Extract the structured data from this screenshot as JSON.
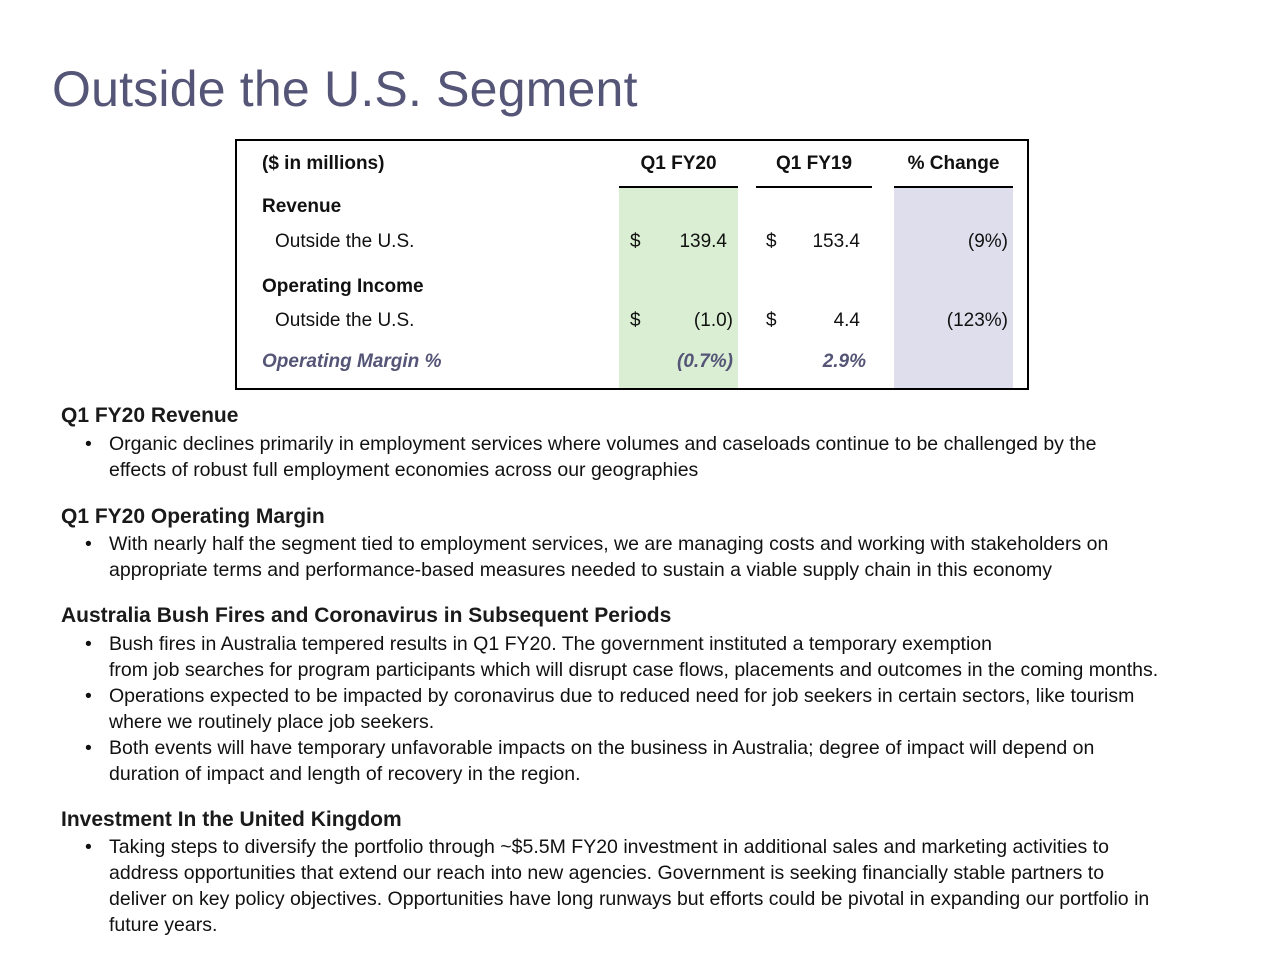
{
  "title": "Outside the U.S. Segment",
  "table": {
    "units": "($ in millions)",
    "col_q1fy20": "Q1 FY20",
    "col_q1fy19": "Q1 FY19",
    "col_change": "% Change",
    "revenue_heading": "Revenue",
    "revenue_row": {
      "label": "Outside the U.S.",
      "q1fy20_currency": "$",
      "q1fy20": "139.4",
      "q1fy19_currency": "$",
      "q1fy19": "153.4",
      "change": "(9%)"
    },
    "opinc_heading": "Operating Income",
    "opinc_row": {
      "label": "Outside the U.S.",
      "q1fy20_currency": "$",
      "q1fy20": "(1.0)",
      "q1fy19_currency": "$",
      "q1fy19": "4.4",
      "change": "(123%)"
    },
    "margin_row": {
      "label": "Operating Margin %",
      "q1fy20": "(0.7%)",
      "q1fy19": "2.9%"
    }
  },
  "sections": [
    {
      "heading": "Q1 FY20 Revenue",
      "bullets": [
        {
          "lines": [
            "Organic declines primarily in employment services where volumes and caseloads continue to be challenged by the",
            "effects of robust full employment economies across our geographies"
          ]
        }
      ]
    },
    {
      "heading": "Q1 FY20 Operating Margin",
      "bullets": [
        {
          "lines": [
            "With nearly half the segment tied to employment services, we are managing costs and working with stakeholders on",
            "appropriate terms and performance-based measures needed to sustain a viable supply chain in this economy"
          ]
        }
      ]
    },
    {
      "heading": "Australia Bush Fires and Coronavirus in Subsequent Periods",
      "bullets": [
        {
          "lines": [
            "Bush fires in Australia tempered results in Q1 FY20. The government instituted a temporary exemption",
            "from job searches for program participants which will disrupt case flows, placements and outcomes in the coming months."
          ]
        },
        {
          "lines": [
            "Operations expected to be impacted by coronavirus due to reduced need for job seekers in certain sectors, like tourism",
            "where we routinely place job seekers."
          ]
        },
        {
          "lines": [
            "Both events will have temporary unfavorable impacts on the business in Australia; degree of impact will depend on",
            "duration of impact and length of recovery in the region."
          ]
        }
      ]
    },
    {
      "heading": "Investment In the United Kingdom",
      "bullets": [
        {
          "lines": [
            "Taking steps to diversify the portfolio through ~$5.5M FY20 investment in additional sales and marketing activities to",
            "address opportunities that extend our reach into new agencies. Government is seeking financially stable partners to",
            "deliver on key policy objectives. Opportunities have long runways but efforts could be pivotal in expanding our portfolio in",
            "future years."
          ]
        }
      ]
    }
  ],
  "bullet_glyph": "•",
  "colors": {
    "title": "#555577",
    "q1fy20_shade": "#daeed3",
    "change_shade": "#dedeed"
  }
}
